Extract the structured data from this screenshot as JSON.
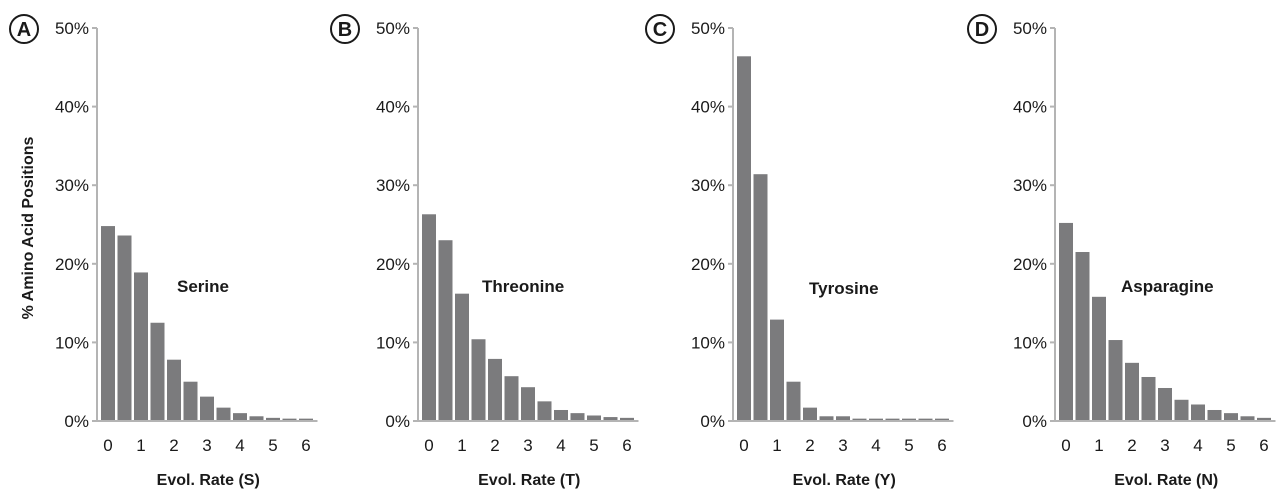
{
  "figure": {
    "ylabel": "% Amino Acid Positions"
  },
  "colors": {
    "bar": "#7b7b7d",
    "axis": "#b4b4b4",
    "text": "#1a1a1a"
  },
  "chart_data": [
    {
      "type": "bar",
      "panel": "A",
      "series_label": "Serine",
      "xlabel": "Evol. Rate (S)",
      "ylabel": "% Amino Acid Positions",
      "ylim": [
        0,
        50
      ],
      "yticks": [
        "0%",
        "10%",
        "20%",
        "30%",
        "40%",
        "50%"
      ],
      "xticks": [
        "0",
        "1",
        "2",
        "3",
        "4",
        "5",
        "6"
      ],
      "categories": [
        0,
        0.5,
        1,
        1.5,
        2,
        2.5,
        3,
        3.5,
        4,
        4.5,
        5,
        5.5,
        6
      ],
      "values": [
        24.8,
        23.6,
        18.9,
        12.5,
        7.8,
        5.0,
        3.1,
        1.7,
        1.0,
        0.6,
        0.4,
        0.3,
        0.3
      ]
    },
    {
      "type": "bar",
      "panel": "B",
      "series_label": "Threonine",
      "xlabel": "Evol. Rate (T)",
      "ylabel": "",
      "ylim": [
        0,
        50
      ],
      "yticks": [
        "0%",
        "10%",
        "20%",
        "30%",
        "40%",
        "50%"
      ],
      "xticks": [
        "0",
        "1",
        "2",
        "3",
        "4",
        "5",
        "6"
      ],
      "categories": [
        0,
        0.5,
        1,
        1.5,
        2,
        2.5,
        3,
        3.5,
        4,
        4.5,
        5,
        5.5,
        6
      ],
      "values": [
        26.3,
        23.0,
        16.2,
        10.4,
        7.9,
        5.7,
        4.3,
        2.5,
        1.4,
        1.0,
        0.7,
        0.5,
        0.4
      ]
    },
    {
      "type": "bar",
      "panel": "C",
      "series_label": "Tyrosine",
      "xlabel": "Evol. Rate (Y)",
      "ylabel": "",
      "ylim": [
        0,
        50
      ],
      "yticks": [
        "0%",
        "10%",
        "20%",
        "30%",
        "40%",
        "50%"
      ],
      "xticks": [
        "0",
        "1",
        "2",
        "3",
        "4",
        "5",
        "6"
      ],
      "categories": [
        0,
        0.5,
        1,
        1.5,
        2,
        2.5,
        3,
        3.5,
        4,
        4.5,
        5,
        5.5,
        6
      ],
      "values": [
        46.4,
        31.4,
        12.9,
        5.0,
        1.7,
        0.6,
        0.6,
        0.3,
        0.3,
        0.3,
        0.3,
        0.3,
        0.3
      ]
    },
    {
      "type": "bar",
      "panel": "D",
      "series_label": "Asparagine",
      "xlabel": "Evol. Rate (N)",
      "ylabel": "",
      "ylim": [
        0,
        50
      ],
      "yticks": [
        "0%",
        "10%",
        "20%",
        "30%",
        "40%",
        "50%"
      ],
      "xticks": [
        "0",
        "1",
        "2",
        "3",
        "4",
        "5",
        "6"
      ],
      "categories": [
        0,
        0.5,
        1,
        1.5,
        2,
        2.5,
        3,
        3.5,
        4,
        4.5,
        5,
        5.5,
        6
      ],
      "values": [
        25.2,
        21.5,
        15.8,
        10.3,
        7.4,
        5.6,
        4.2,
        2.7,
        2.1,
        1.4,
        1.0,
        0.6,
        0.4
      ]
    }
  ]
}
